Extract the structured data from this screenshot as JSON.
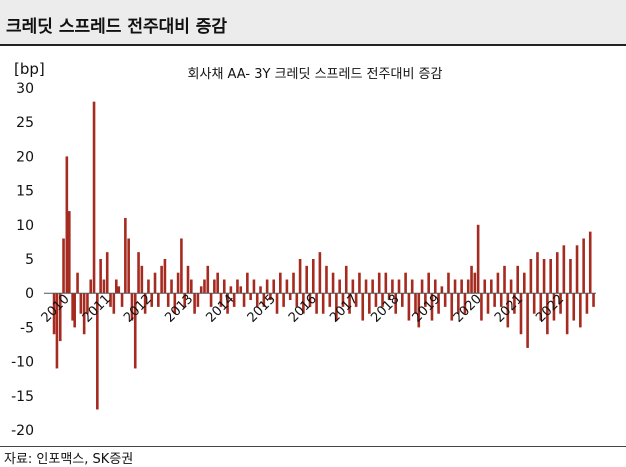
{
  "header": {
    "title": "크레딧 스프레드 전주대비 증감"
  },
  "source": "자료: 인포맥스, SK증권",
  "chart_data": {
    "type": "bar",
    "title": "회사채 AA- 3Y 크레딧 스프레드 전주대비 증감",
    "ylabel": "[bp]",
    "xlabel": "",
    "ylim": [
      -20,
      30
    ],
    "yticks": [
      -20,
      -15,
      -10,
      -5,
      0,
      5,
      10,
      15,
      20,
      25,
      30
    ],
    "xticks": [
      "2010",
      "2011",
      "2012",
      "2013",
      "2014",
      "2015",
      "2016",
      "2017",
      "2018",
      "2019",
      "2020",
      "2021",
      "2022"
    ],
    "xlim": [
      2010.0,
      2023.2
    ],
    "grid": false,
    "legend": "none",
    "color": "#a52a1f",
    "series": [
      {
        "x": [
          2010.05,
          2010.12,
          2010.2,
          2010.28,
          2010.36,
          2010.42,
          2010.5,
          2010.55,
          2010.62,
          2010.7,
          2010.78,
          2010.86,
          2010.94,
          2011.02,
          2011.1,
          2011.18,
          2011.26,
          2011.34,
          2011.42,
          2011.5,
          2011.56,
          2011.62,
          2011.7,
          2011.78,
          2011.86,
          2011.94,
          2012.02,
          2012.1,
          2012.18,
          2012.26,
          2012.34,
          2012.42,
          2012.5,
          2012.58,
          2012.66,
          2012.74,
          2012.82,
          2012.9,
          2012.98,
          2013.06,
          2013.14,
          2013.22,
          2013.3,
          2013.38,
          2013.46,
          2013.54,
          2013.62,
          2013.7,
          2013.78,
          2013.86,
          2013.94,
          2014.02,
          2014.1,
          2014.18,
          2014.26,
          2014.34,
          2014.42,
          2014.5,
          2014.58,
          2014.66,
          2014.74,
          2014.82,
          2014.9,
          2014.98,
          2015.06,
          2015.14,
          2015.22,
          2015.3,
          2015.38,
          2015.46,
          2015.54,
          2015.62,
          2015.7,
          2015.78,
          2015.86,
          2015.94,
          2016.02,
          2016.1,
          2016.18,
          2016.26,
          2016.34,
          2016.42,
          2016.5,
          2016.58,
          2016.66,
          2016.74,
          2016.82,
          2016.9,
          2016.98,
          2017.06,
          2017.14,
          2017.22,
          2017.3,
          2017.38,
          2017.46,
          2017.54,
          2017.62,
          2017.7,
          2017.78,
          2017.86,
          2017.94,
          2018.02,
          2018.1,
          2018.18,
          2018.26,
          2018.34,
          2018.42,
          2018.5,
          2018.58,
          2018.66,
          2018.74,
          2018.82,
          2018.9,
          2018.98,
          2019.06,
          2019.14,
          2019.22,
          2019.3,
          2019.38,
          2019.46,
          2019.54,
          2019.62,
          2019.7,
          2019.78,
          2019.86,
          2019.94,
          2020.02,
          2020.1,
          2020.18,
          2020.26,
          2020.34,
          2020.42,
          2020.5,
          2020.58,
          2020.66,
          2020.74,
          2020.82,
          2020.9,
          2020.98,
          2021.06,
          2021.14,
          2021.22,
          2021.3,
          2021.38,
          2021.46,
          2021.54,
          2021.62,
          2021.7,
          2021.78,
          2021.86,
          2021.94,
          2022.02,
          2022.1,
          2022.18,
          2022.26,
          2022.34,
          2022.42,
          2022.5,
          2022.58,
          2022.66,
          2022.74,
          2022.82,
          2022.9,
          2022.98,
          2023.06,
          2023.14
        ],
        "values": [
          -6,
          -11,
          -7,
          8,
          20,
          12,
          -4,
          -5,
          3,
          -3,
          -6,
          -3,
          2,
          28,
          -17,
          5,
          2,
          6,
          -2,
          -3,
          2,
          1,
          -2,
          11,
          8,
          -4,
          -11,
          6,
          4,
          -3,
          2,
          -2,
          3,
          -2,
          4,
          5,
          -2,
          2,
          -3,
          3,
          8,
          -2,
          4,
          2,
          -3,
          -2,
          1,
          2,
          4,
          -2,
          2,
          3,
          -2,
          2,
          -3,
          1,
          -2,
          2,
          1,
          -2,
          3,
          -1,
          2,
          -2,
          1,
          -2,
          2,
          -1,
          2,
          -3,
          3,
          -2,
          2,
          -1,
          3,
          -2,
          5,
          -3,
          4,
          -2,
          5,
          -3,
          6,
          -3,
          4,
          -2,
          3,
          -4,
          2,
          -2,
          4,
          -3,
          2,
          -2,
          3,
          -4,
          2,
          -3,
          2,
          -2,
          3,
          -2,
          3,
          -1,
          2,
          -3,
          2,
          -2,
          3,
          -4,
          2,
          -3,
          -5,
          2,
          -2,
          3,
          -4,
          2,
          -3,
          1,
          -2,
          3,
          -4,
          2,
          -3,
          2,
          -3,
          2,
          4,
          3,
          10,
          -4,
          2,
          -3,
          2,
          -2,
          3,
          -2,
          4,
          -5,
          2,
          -3,
          4,
          -6,
          3,
          -8,
          5,
          -3,
          6,
          -4,
          5,
          -6,
          5,
          -4,
          6,
          -3,
          7,
          -6,
          5,
          -4,
          7,
          -5,
          8,
          -3,
          9,
          -2
        ]
      }
    ]
  }
}
